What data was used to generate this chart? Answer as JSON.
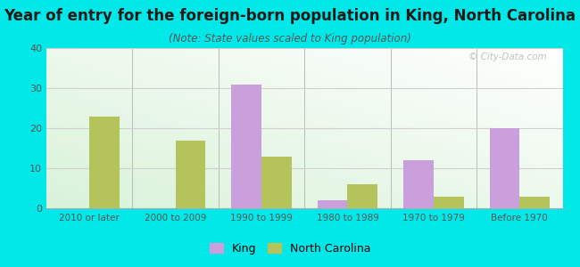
{
  "title": "Year of entry for the foreign-born population in King, North Carolina",
  "subtitle": "(Note: State values scaled to King population)",
  "categories": [
    "2010 or later",
    "2000 to 2009",
    "1990 to 1999",
    "1980 to 1989",
    "1970 to 1979",
    "Before 1970"
  ],
  "king_values": [
    0,
    0,
    31,
    2,
    12,
    20
  ],
  "nc_values": [
    23,
    17,
    13,
    6,
    3,
    3
  ],
  "king_color": "#c9a0dc",
  "nc_color": "#b5c45a",
  "background_color": "#00e8e8",
  "ylim": [
    0,
    40
  ],
  "yticks": [
    0,
    10,
    20,
    30,
    40
  ],
  "bar_width": 0.35,
  "title_fontsize": 12,
  "subtitle_fontsize": 8.5,
  "legend_labels": [
    "King",
    "North Carolina"
  ],
  "watermark": "© City-Data.com",
  "grid_color": "#d0d0d0",
  "separator_color": "#bbbbbb"
}
